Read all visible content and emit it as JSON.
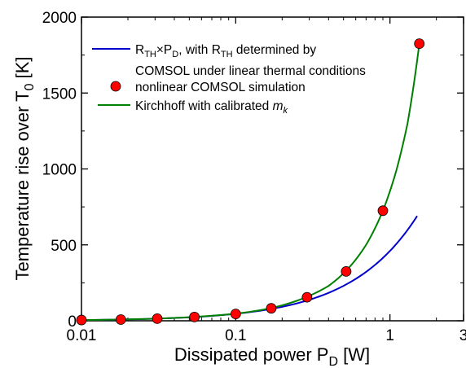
{
  "chart_data": {
    "type": "line",
    "x_scale": "log",
    "xlim": [
      0.01,
      3
    ],
    "ylim": [
      0,
      2000
    ],
    "xticks": [
      {
        "value": 0.01,
        "label": "0.01"
      },
      {
        "value": 0.1,
        "label": "0.1"
      },
      {
        "value": 1,
        "label": "1"
      },
      {
        "value": 3,
        "label": "3"
      }
    ],
    "yticks": [
      {
        "value": 0,
        "label": "0"
      },
      {
        "value": 500,
        "label": "500"
      },
      {
        "value": 1000,
        "label": "1000"
      },
      {
        "value": 1500,
        "label": "1500"
      },
      {
        "value": 2000,
        "label": "2000"
      }
    ],
    "xlabel": {
      "main": "Dissipated power P",
      "sub": "D",
      "unit": " [W]"
    },
    "ylabel": {
      "main": "Temperature rise over T",
      "sub": "0",
      "unit": " [K]"
    },
    "grid": false,
    "legend_position": "top-left",
    "series": [
      {
        "name": "R_TH×P_D, with R_TH determined by COMSOL under linear thermal conditions",
        "legend_parts": {
          "r1": "R",
          "r1_sub": "TH",
          "times": "×P",
          "p_sub": "D",
          "mid": ", with R",
          "r2_sub": "TH",
          "end": " determined by",
          "line2": "COMSOL under linear thermal conditions"
        },
        "kind": "line",
        "color": "#0000cc",
        "x": [
          0.01,
          0.02,
          0.05,
          0.1,
          0.2,
          0.3,
          0.5,
          0.8,
          1.0,
          1.2,
          1.5
        ],
        "y": [
          4.6,
          9.2,
          23,
          46,
          92,
          138,
          230,
          368,
          460,
          552,
          690
        ]
      },
      {
        "name": "nonlinear COMSOL simulation",
        "kind": "scatter",
        "color": "#ff0000",
        "x": [
          0.01,
          0.018,
          0.031,
          0.054,
          0.1,
          0.17,
          0.29,
          0.52,
          0.9,
          1.55
        ],
        "y": [
          5,
          8,
          14,
          25,
          45,
          82,
          155,
          325,
          725,
          1825
        ]
      },
      {
        "name": "Kirchhoff with calibrated m_k",
        "legend_parts": {
          "text": "Kirchhoff with calibrated ",
          "m": "m",
          "m_sub": "k"
        },
        "kind": "line",
        "color": "#008000",
        "x": [
          0.01,
          0.018,
          0.031,
          0.054,
          0.1,
          0.17,
          0.29,
          0.4,
          0.52,
          0.7,
          0.9,
          1.1,
          1.3,
          1.55
        ],
        "y": [
          4.7,
          8.5,
          14.5,
          25.5,
          47,
          84,
          158,
          230,
          330,
          500,
          725,
          990,
          1300,
          1825
        ]
      }
    ]
  }
}
